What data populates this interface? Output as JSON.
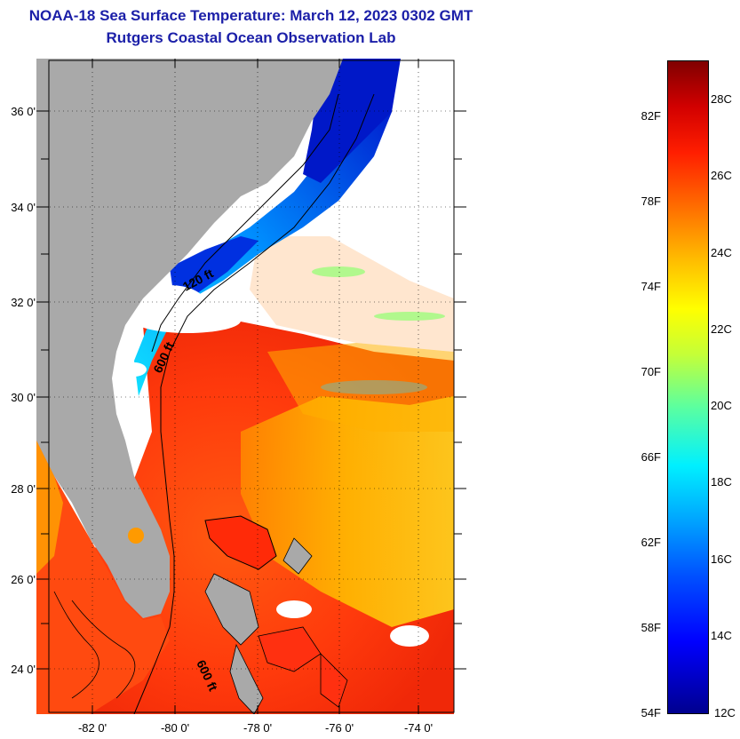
{
  "title": "NOAA-18 Sea Surface Temperature:  March 12, 2023 0302 GMT",
  "subtitle": "Rutgers Coastal Ocean Observation Lab",
  "map": {
    "lat_labels": [
      "36 0'",
      "34 0'",
      "32 0'",
      "30 0'",
      "28 0'",
      "26 0'",
      "24 0'"
    ],
    "lon_labels": [
      "-82 0'",
      "-80 0'",
      "-78 0'",
      "-76 0'",
      "-74 0'"
    ],
    "contour_labels": [
      "120 ft",
      "600 ft",
      "600 ft"
    ],
    "colors": {
      "land": "#a9a9a9",
      "warm": "#ff3c10",
      "mid": "#ffbe00",
      "cool": "#00c8ff",
      "cold": "#0018d0"
    }
  },
  "colorbar": {
    "fahrenheit_labels": [
      "82F",
      "78F",
      "74F",
      "70F",
      "66F",
      "62F",
      "58F",
      "54F"
    ],
    "celsius_labels": [
      "28C",
      "26C",
      "24C",
      "22C",
      "20C",
      "18C",
      "16C",
      "14C",
      "12C"
    ]
  }
}
